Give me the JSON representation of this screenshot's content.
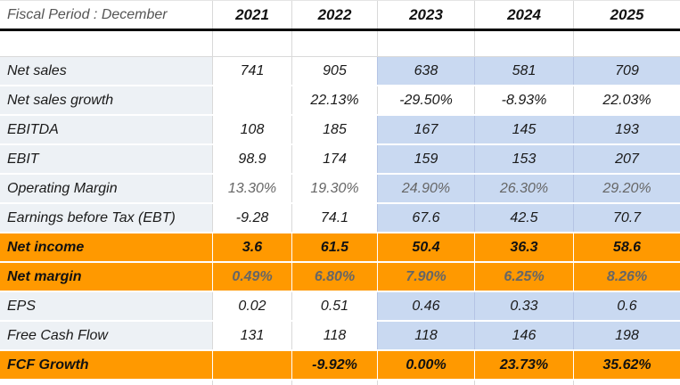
{
  "colors": {
    "highlight_orange": "#FF9900",
    "estimate_blue": "#C9D9F1",
    "label_background": "#EDF1F5",
    "grid_line": "#D9D9D9",
    "header_divider": "#000000",
    "text_primary": "#1A1A1A",
    "text_muted": "#666666",
    "header_text": "#555555"
  },
  "table": {
    "corner_label": "Fiscal Period : December",
    "years": [
      "2021",
      "2022",
      "2023",
      "2024",
      "2025"
    ],
    "estimate_columns_start_index": 2,
    "rows": [
      {
        "label": "Net sales",
        "values": [
          "741",
          "905",
          "638",
          "581",
          "709"
        ],
        "highlight": false,
        "bold": false,
        "muted_values": false,
        "shade_estimates": true
      },
      {
        "label": "Net sales growth",
        "values": [
          "",
          "22.13%",
          "-29.50%",
          "-8.93%",
          "22.03%"
        ],
        "highlight": false,
        "bold": false,
        "muted_values": false,
        "shade_estimates": false
      },
      {
        "label": "EBITDA",
        "values": [
          "108",
          "185",
          "167",
          "145",
          "193"
        ],
        "highlight": false,
        "bold": false,
        "muted_values": false,
        "shade_estimates": true
      },
      {
        "label": "EBIT",
        "values": [
          "98.9",
          "174",
          "159",
          "153",
          "207"
        ],
        "highlight": false,
        "bold": false,
        "muted_values": false,
        "shade_estimates": true
      },
      {
        "label": "Operating Margin",
        "values": [
          "13.30%",
          "19.30%",
          "24.90%",
          "26.30%",
          "29.20%"
        ],
        "highlight": false,
        "bold": false,
        "muted_values": true,
        "shade_estimates": true
      },
      {
        "label": "Earnings before Tax (EBT)",
        "values": [
          "-9.28",
          "74.1",
          "67.6",
          "42.5",
          "70.7"
        ],
        "highlight": false,
        "bold": false,
        "muted_values": false,
        "shade_estimates": true
      },
      {
        "label": "Net income",
        "values": [
          "3.6",
          "61.5",
          "50.4",
          "36.3",
          "58.6"
        ],
        "highlight": true,
        "bold": true,
        "muted_values": false,
        "shade_estimates": false
      },
      {
        "label": "Net margin",
        "values": [
          "0.49%",
          "6.80%",
          "7.90%",
          "6.25%",
          "8.26%"
        ],
        "highlight": true,
        "bold": true,
        "muted_values": true,
        "shade_estimates": false
      },
      {
        "label": "EPS",
        "values": [
          "0.02",
          "0.51",
          "0.46",
          "0.33",
          "0.6"
        ],
        "highlight": false,
        "bold": false,
        "muted_values": false,
        "shade_estimates": true
      },
      {
        "label": "Free Cash Flow",
        "values": [
          "131",
          "118",
          "118",
          "146",
          "198"
        ],
        "highlight": false,
        "bold": false,
        "muted_values": false,
        "shade_estimates": true
      },
      {
        "label": "FCF Growth",
        "values": [
          "",
          "-9.92%",
          "0.00%",
          "23.73%",
          "35.62%"
        ],
        "highlight": true,
        "bold": true,
        "muted_values": false,
        "shade_estimates": false
      }
    ]
  },
  "chart_data": {
    "type": "table",
    "title": "Fiscal Period : December",
    "columns": [
      "Fiscal Period : December",
      "2021",
      "2022",
      "2023",
      "2024",
      "2025"
    ],
    "rows": [
      [
        "Net sales",
        "741",
        "905",
        "638",
        "581",
        "709"
      ],
      [
        "Net sales growth",
        "",
        "22.13%",
        "-29.50%",
        "-8.93%",
        "22.03%"
      ],
      [
        "EBITDA",
        "108",
        "185",
        "167",
        "145",
        "193"
      ],
      [
        "EBIT",
        "98.9",
        "174",
        "159",
        "153",
        "207"
      ],
      [
        "Operating Margin",
        "13.30%",
        "19.30%",
        "24.90%",
        "26.30%",
        "29.20%"
      ],
      [
        "Earnings before Tax (EBT)",
        "-9.28",
        "74.1",
        "67.6",
        "42.5",
        "70.7"
      ],
      [
        "Net income",
        "3.6",
        "61.5",
        "50.4",
        "36.3",
        "58.6"
      ],
      [
        "Net margin",
        "0.49%",
        "6.80%",
        "7.90%",
        "6.25%",
        "8.26%"
      ],
      [
        "EPS",
        "0.02",
        "0.51",
        "0.46",
        "0.33",
        "0.6"
      ],
      [
        "Free Cash Flow",
        "131",
        "118",
        "118",
        "146",
        "198"
      ],
      [
        "FCF Growth",
        "",
        "-9.92%",
        "0.00%",
        "23.73%",
        "35.62%"
      ]
    ],
    "layout_hints": "Columns 2023-2025 are estimate columns shaded light blue; Net income, Net margin and FCF Growth rows are highlighted orange with bold text; percentage margin rows rendered in gray text; thick black divider under header row"
  }
}
